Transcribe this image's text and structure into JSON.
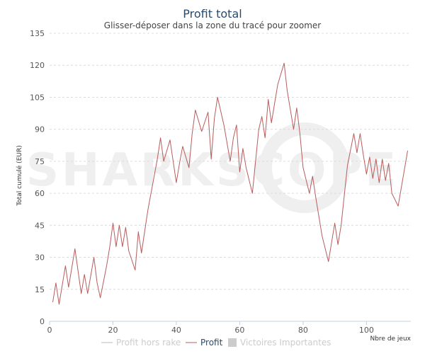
{
  "chart_data": {
    "type": "line",
    "title": "Profit total",
    "subtitle": "Glisser-déposer dans la zone du tracé pour zoomer",
    "xlabel": "Nbre de jeux",
    "ylabel": "Total cumulé (EUR)",
    "xlim": [
      0,
      114
    ],
    "ylim": [
      0,
      135
    ],
    "x_ticks": [
      0,
      20,
      40,
      60,
      80,
      100
    ],
    "y_ticks": [
      0,
      15,
      30,
      45,
      60,
      75,
      90,
      105,
      120,
      135
    ],
    "grid": true,
    "watermark": "SHARKSCOPE",
    "colors": {
      "profit": "#b85c5c",
      "profit_hors_rake": "#bbbbbb",
      "victoires": "#cccccc",
      "title": "#274b6d"
    },
    "series": [
      {
        "name": "Profit",
        "x": [
          1,
          2,
          3,
          5,
          6,
          8,
          10,
          11,
          12,
          14,
          15,
          16,
          18,
          19,
          20,
          21,
          22,
          23,
          24,
          25,
          27,
          28,
          29,
          31,
          34,
          35,
          36,
          38,
          40,
          41,
          42,
          44,
          45,
          46,
          48,
          50,
          51,
          52,
          53,
          55,
          57,
          58,
          59,
          60,
          61,
          62,
          64,
          66,
          67,
          68,
          69,
          70,
          71,
          72,
          74,
          75,
          77,
          78,
          79,
          80,
          82,
          83,
          84,
          86,
          88,
          90,
          91,
          92,
          94,
          96,
          97,
          98,
          99,
          100,
          101,
          102,
          103,
          104,
          105,
          106,
          107,
          108,
          110,
          113
        ],
        "values": [
          9,
          18,
          8,
          26,
          16,
          34,
          13,
          22,
          13,
          30,
          18,
          11,
          26,
          35,
          46,
          35,
          45,
          35,
          44,
          33,
          24,
          42,
          32,
          52,
          76,
          86,
          75,
          85,
          65,
          74,
          82,
          72,
          88,
          99,
          89,
          98,
          76,
          95,
          105,
          92,
          75,
          86,
          92,
          70,
          81,
          72,
          60,
          90,
          96,
          86,
          104,
          93,
          102,
          111,
          121,
          108,
          90,
          100,
          88,
          72,
          60,
          68,
          58,
          40,
          28,
          46,
          36,
          45,
          73,
          88,
          79,
          88,
          78,
          69,
          77,
          67,
          76,
          65,
          76,
          66,
          74,
          60,
          54,
          80
        ]
      }
    ],
    "legend": {
      "position": "bottom",
      "items": [
        {
          "label": "Profit hors rake",
          "color": "#bbbbbb",
          "active": false,
          "symbol": "line"
        },
        {
          "label": "Profit",
          "color": "#b85c5c",
          "active": true,
          "symbol": "line"
        },
        {
          "label": "Victoires Importantes",
          "color": "#cccccc",
          "active": false,
          "symbol": "box"
        }
      ]
    }
  }
}
